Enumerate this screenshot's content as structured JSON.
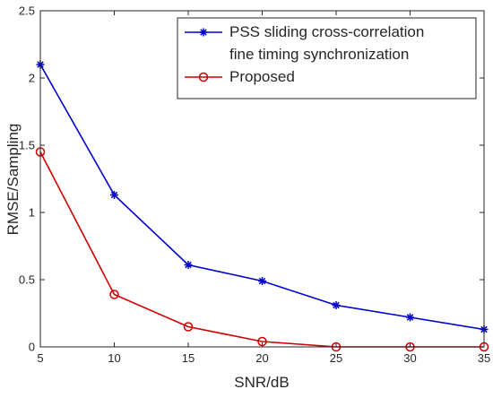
{
  "chart_data": {
    "type": "line",
    "title": "",
    "xlabel": "SNR/dB",
    "ylabel": "RMSE/Sampling",
    "x": [
      5,
      10,
      15,
      20,
      25,
      30,
      35
    ],
    "xlim": [
      5,
      35
    ],
    "ylim": [
      0,
      2.5
    ],
    "xticks": [
      "5",
      "10",
      "15",
      "20",
      "25",
      "30",
      "35"
    ],
    "yticks": [
      "0",
      "0.5",
      "1",
      "1.5",
      "2",
      "2.5"
    ],
    "grid": false,
    "legend_position": "top-right",
    "series": [
      {
        "name": "PSS sliding cross-correlation fine timing synchronization",
        "legend_lines": [
          "PSS sliding cross-correlation",
          "fine timing synchronization"
        ],
        "values": [
          2.1,
          1.13,
          0.61,
          0.49,
          0.31,
          0.22,
          0.13
        ],
        "color": "#0000cc",
        "marker": "asterisk"
      },
      {
        "name": "Proposed",
        "legend_lines": [
          "Proposed"
        ],
        "values": [
          1.45,
          0.39,
          0.15,
          0.04,
          0.0,
          0.0,
          0.0
        ],
        "color": "#cc0000",
        "marker": "circle"
      }
    ]
  }
}
